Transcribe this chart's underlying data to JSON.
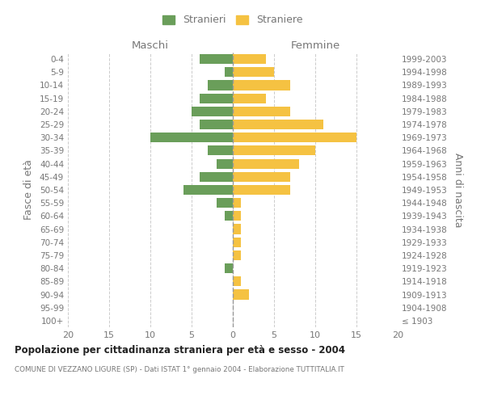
{
  "age_groups": [
    "100+",
    "95-99",
    "90-94",
    "85-89",
    "80-84",
    "75-79",
    "70-74",
    "65-69",
    "60-64",
    "55-59",
    "50-54",
    "45-49",
    "40-44",
    "35-39",
    "30-34",
    "25-29",
    "20-24",
    "15-19",
    "10-14",
    "5-9",
    "0-4"
  ],
  "birth_years": [
    "≤ 1903",
    "1904-1908",
    "1909-1913",
    "1914-1918",
    "1919-1923",
    "1924-1928",
    "1929-1933",
    "1934-1938",
    "1939-1943",
    "1944-1948",
    "1949-1953",
    "1954-1958",
    "1959-1963",
    "1964-1968",
    "1969-1973",
    "1974-1978",
    "1979-1983",
    "1984-1988",
    "1989-1993",
    "1994-1998",
    "1999-2003"
  ],
  "maschi": [
    0,
    0,
    0,
    0,
    1,
    0,
    0,
    0,
    1,
    2,
    6,
    4,
    2,
    3,
    10,
    4,
    5,
    4,
    3,
    1,
    4
  ],
  "femmine": [
    0,
    0,
    2,
    1,
    0,
    1,
    1,
    1,
    1,
    1,
    7,
    7,
    8,
    10,
    15,
    11,
    7,
    4,
    7,
    5,
    4
  ],
  "color_maschi": "#6a9e5a",
  "color_femmine": "#f5c242",
  "xlim": [
    -20,
    20
  ],
  "xticks": [
    -20,
    -15,
    -10,
    -5,
    0,
    5,
    10,
    15,
    20
  ],
  "xticklabels": [
    "20",
    "15",
    "10",
    "5",
    "0",
    "5",
    "10",
    "15",
    "20"
  ],
  "title": "Popolazione per cittadinanza straniera per età e sesso - 2004",
  "subtitle": "COMUNE DI VEZZANO LIGURE (SP) - Dati ISTAT 1° gennaio 2004 - Elaborazione TUTTITALIA.IT",
  "ylabel_left": "Fasce di età",
  "ylabel_right": "Anni di nascita",
  "label_maschi": "Stranieri",
  "label_femmine": "Straniere",
  "header_maschi": "Maschi",
  "header_femmine": "Femmine",
  "bg_color": "#ffffff",
  "grid_color": "#cccccc",
  "text_color": "#777777",
  "bar_height": 0.75
}
